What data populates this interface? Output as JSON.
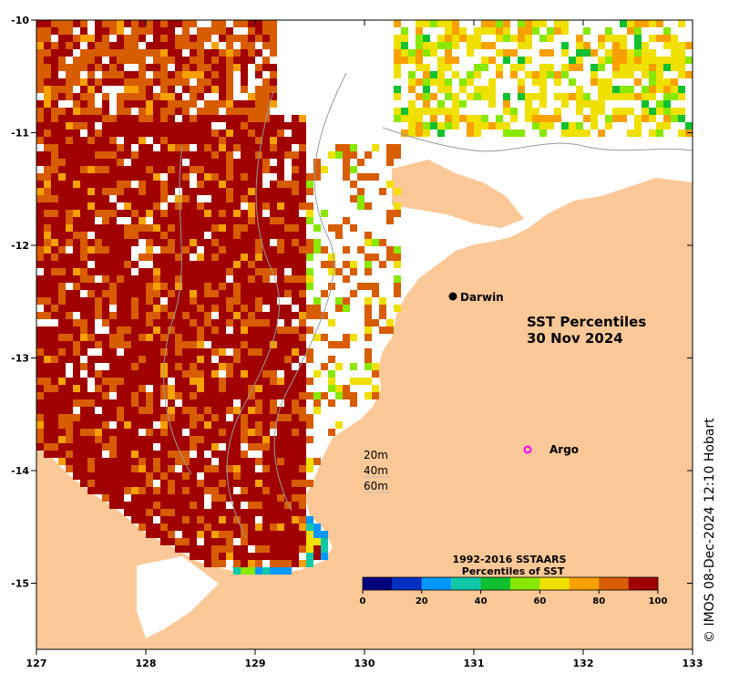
{
  "map": {
    "title_line1": "SST Percentiles",
    "title_line2": "30 Nov 2024",
    "city_label": "Darwin",
    "argo_label": "Argo",
    "depth_contours": [
      "20m",
      "40m",
      "60m"
    ],
    "credit": "© IMOS 08-Dec-2024 12:10 Hobart",
    "x_ticks": [
      "127",
      "128",
      "129",
      "130",
      "131",
      "132",
      "133"
    ],
    "y_ticks": [
      "-10",
      "-11",
      "-12",
      "-13",
      "-14",
      "-15"
    ],
    "colors": {
      "land": "#fdc897",
      "no_data": "#ffffff",
      "darwin_dot": "#000000",
      "argo_marker": "#ff00ff"
    }
  },
  "colorbar": {
    "title_line1": "1992-2016 SSTAARS",
    "title_line2": "Percentiles of SST",
    "tick_labels": [
      "0",
      "20",
      "40",
      "60",
      "80",
      "100"
    ],
    "colors": [
      "#00007f",
      "#0030c0",
      "#0098ff",
      "#10c8a8",
      "#10c030",
      "#88e800",
      "#f0e000",
      "#f8a000",
      "#d85c00",
      "#a00000"
    ]
  }
}
